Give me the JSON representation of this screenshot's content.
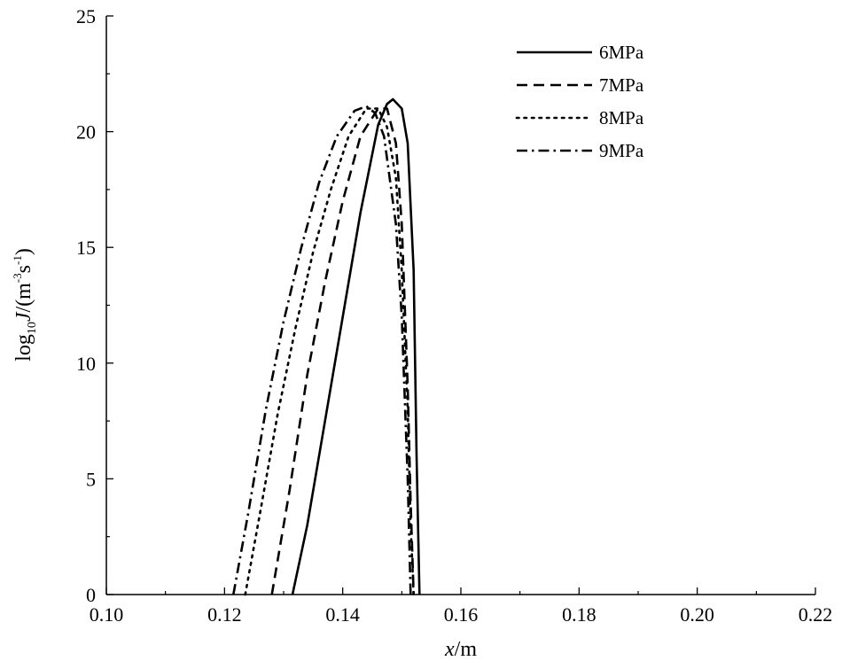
{
  "chart_data": {
    "type": "line",
    "xlabel": {
      "italic": "x",
      "rest": "/m"
    },
    "ylabel": {
      "log": "log",
      "sub": "10",
      "italic": "J",
      "pre": "/(m",
      "sup1": "-3",
      "mid": "s",
      "sup2": "-1",
      "post": ")"
    },
    "xlim": [
      0.1,
      0.22
    ],
    "ylim": [
      0,
      25
    ],
    "x_ticks": [
      "0.10",
      "0.12",
      "0.14",
      "0.16",
      "0.18",
      "0.20",
      "0.22"
    ],
    "y_ticks": [
      "0",
      "5",
      "10",
      "15",
      "20",
      "25"
    ],
    "legend_position": "top-right",
    "grid": false,
    "series": [
      {
        "name": "6MPa",
        "dash": "solid",
        "x": [
          0.1315,
          0.134,
          0.137,
          0.14,
          0.143,
          0.146,
          0.1475,
          0.1485,
          0.15,
          0.151,
          0.152,
          0.1525,
          0.153
        ],
        "y": [
          0,
          3.0,
          7.5,
          12.0,
          16.5,
          20.3,
          21.2,
          21.4,
          21.0,
          19.5,
          14.0,
          6.0,
          0
        ]
      },
      {
        "name": "7MPa",
        "dash": "dashed",
        "x": [
          0.128,
          0.131,
          0.134,
          0.137,
          0.14,
          0.143,
          0.146,
          0.1475,
          0.149,
          0.15,
          0.151,
          0.1515,
          0.152
        ],
        "y": [
          0,
          4.5,
          9.5,
          13.5,
          17.0,
          19.8,
          21.0,
          21.0,
          19.5,
          16.0,
          9.0,
          4.0,
          0
        ]
      },
      {
        "name": "8MPa",
        "dash": "dotted",
        "x": [
          0.1235,
          0.126,
          0.129,
          0.132,
          0.135,
          0.138,
          0.141,
          0.144,
          0.146,
          0.1475,
          0.149,
          0.15,
          0.151,
          0.1515,
          0.152
        ],
        "y": [
          0,
          3.5,
          7.8,
          11.5,
          14.8,
          17.5,
          19.8,
          21.0,
          21.0,
          20.2,
          18.0,
          14.0,
          8.0,
          3.0,
          0
        ]
      },
      {
        "name": "9MPa",
        "dash": "dashdot",
        "x": [
          0.1215,
          0.124,
          0.127,
          0.13,
          0.133,
          0.136,
          0.139,
          0.142,
          0.144,
          0.1455,
          0.147,
          0.149,
          0.15,
          0.151,
          0.1515
        ],
        "y": [
          0,
          3.5,
          8.0,
          11.8,
          15.0,
          17.8,
          19.8,
          20.9,
          21.1,
          20.8,
          19.8,
          16.0,
          12.0,
          5.0,
          0
        ]
      }
    ]
  }
}
